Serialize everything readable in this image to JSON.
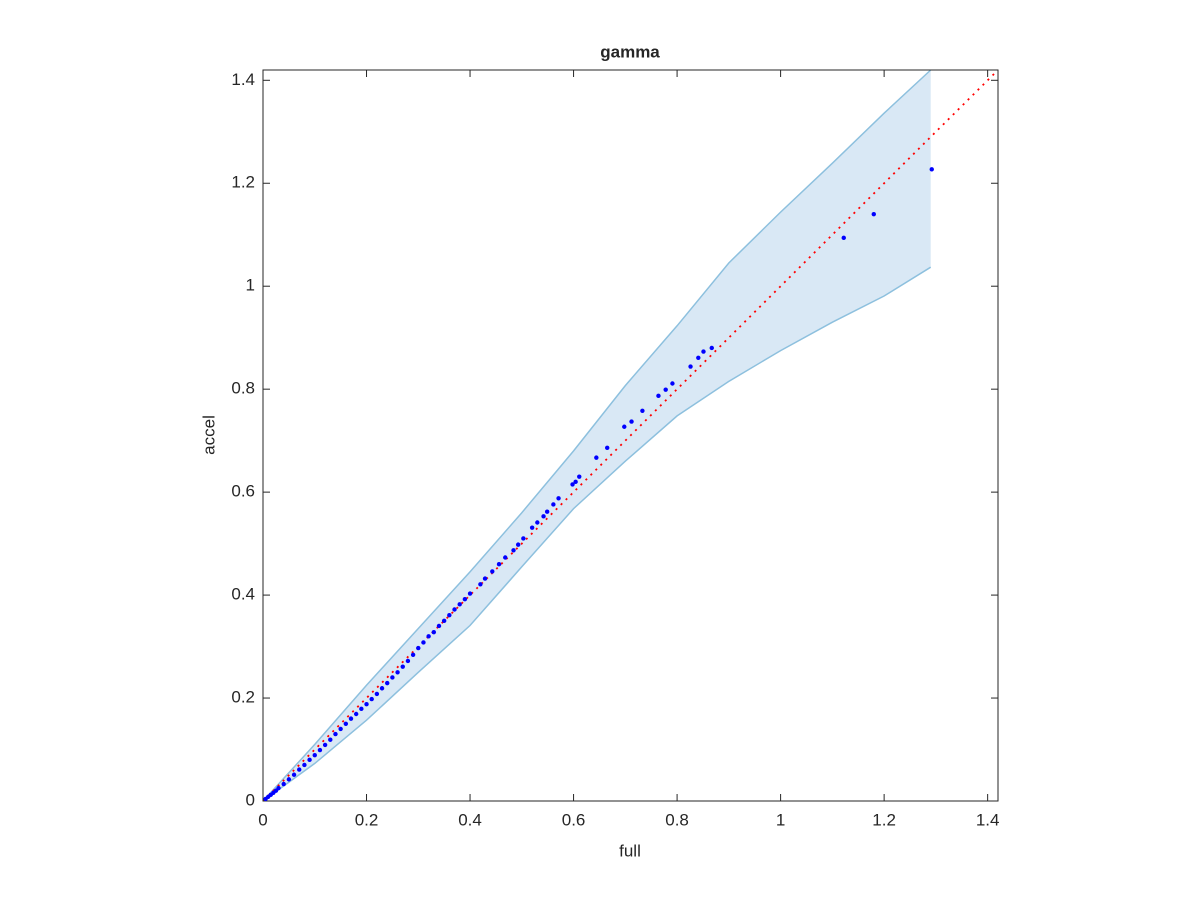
{
  "chart_data": {
    "type": "scatter",
    "title": "gamma",
    "xlabel": "full",
    "ylabel": "accel",
    "x": [
      0.005,
      0.01,
      0.015,
      0.02,
      0.025,
      0.03,
      0.04,
      0.05,
      0.06,
      0.07,
      0.08,
      0.09,
      0.1,
      0.11,
      0.12,
      0.13,
      0.14,
      0.15,
      0.16,
      0.17,
      0.18,
      0.19,
      0.2,
      0.21,
      0.22,
      0.23,
      0.24,
      0.25,
      0.26,
      0.27,
      0.28,
      0.29,
      0.3,
      0.31,
      0.32,
      0.33,
      0.34,
      0.35,
      0.36,
      0.37,
      0.38,
      0.39,
      0.4,
      0.42,
      0.429,
      0.443,
      0.456,
      0.468,
      0.484,
      0.493,
      0.503,
      0.52,
      0.53,
      0.542,
      0.549,
      0.561,
      0.571,
      0.598,
      0.604,
      0.611,
      0.644,
      0.665,
      0.698,
      0.712,
      0.733,
      0.764,
      0.778,
      0.791,
      0.826,
      0.841,
      0.851,
      0.867,
      1.122,
      1.18,
      1.292
    ],
    "values": [
      0.004,
      0.008,
      0.012,
      0.016,
      0.02,
      0.025,
      0.033,
      0.042,
      0.051,
      0.061,
      0.07,
      0.08,
      0.089,
      0.099,
      0.109,
      0.119,
      0.13,
      0.14,
      0.15,
      0.16,
      0.169,
      0.179,
      0.188,
      0.198,
      0.208,
      0.219,
      0.229,
      0.24,
      0.25,
      0.261,
      0.272,
      0.284,
      0.297,
      0.308,
      0.32,
      0.328,
      0.34,
      0.35,
      0.361,
      0.372,
      0.382,
      0.392,
      0.403,
      0.421,
      0.432,
      0.446,
      0.46,
      0.473,
      0.487,
      0.498,
      0.51,
      0.531,
      0.541,
      0.553,
      0.562,
      0.576,
      0.588,
      0.615,
      0.62,
      0.63,
      0.667,
      0.686,
      0.727,
      0.737,
      0.758,
      0.787,
      0.799,
      0.811,
      0.844,
      0.861,
      0.873,
      0.88,
      1.094,
      1.14,
      1.227
    ],
    "color": "#0000ff",
    "band": {
      "x": [
        0,
        0.1,
        0.2,
        0.3,
        0.4,
        0.5,
        0.6,
        0.7,
        0.8,
        0.9,
        1.0,
        1.1,
        1.2,
        1.29
      ],
      "upper": [
        0,
        0.11,
        0.225,
        0.335,
        0.445,
        0.56,
        0.68,
        0.807,
        0.923,
        1.045,
        1.144,
        1.239,
        1.336,
        1.42
      ],
      "lower": [
        0,
        0.073,
        0.157,
        0.25,
        0.341,
        0.455,
        0.568,
        0.66,
        0.748,
        0.815,
        0.875,
        0.93,
        0.981,
        1.037
      ],
      "fill": "#d9e8f5",
      "edge": "#8dc0de"
    },
    "reference_line": {
      "x": [
        0,
        1.42
      ],
      "values": [
        0,
        1.42
      ],
      "color": "#ff0000"
    },
    "xlim": [
      0,
      1.42
    ],
    "ylim": [
      0,
      1.42
    ],
    "xticks": [
      0,
      0.2,
      0.4,
      0.6,
      0.8,
      1,
      1.2,
      1.4
    ],
    "yticks": [
      0,
      0.2,
      0.4,
      0.6,
      0.8,
      1,
      1.2,
      1.4
    ],
    "grid": false
  }
}
